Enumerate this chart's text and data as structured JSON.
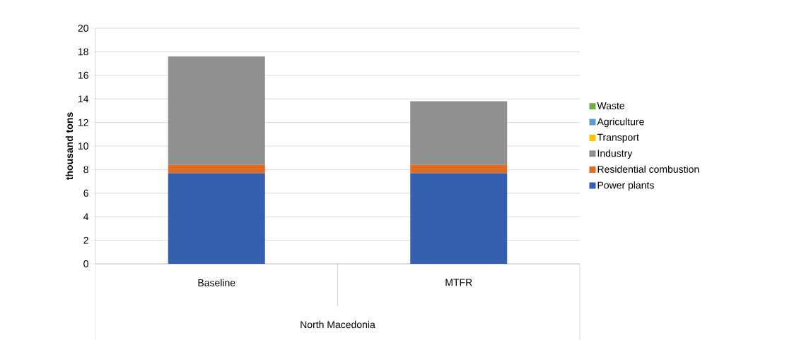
{
  "chart_data": {
    "type": "bar",
    "stacked": true,
    "categories": [
      "Baseline",
      "MTFR"
    ],
    "xlabel": "North Macedonia",
    "ylabel": "thousand tons",
    "ylim": [
      0,
      20
    ],
    "yticks": [
      0,
      2,
      4,
      6,
      8,
      10,
      12,
      14,
      16,
      18,
      20
    ],
    "grid": "y",
    "legend": "right",
    "series": [
      {
        "name": "Power plants",
        "color": "#3560b0",
        "values": [
          7.7,
          7.7
        ]
      },
      {
        "name": "Residential combustion",
        "color": "#e06c23",
        "values": [
          0.7,
          0.7
        ]
      },
      {
        "name": "Industry",
        "color": "#8f8f8f",
        "values": [
          9.2,
          5.4
        ]
      },
      {
        "name": "Transport",
        "color": "#ffc000",
        "values": [
          0,
          0
        ]
      },
      {
        "name": "Agriculture",
        "color": "#5b9bd5",
        "values": [
          0,
          0
        ]
      },
      {
        "name": "Waste",
        "color": "#70ad47",
        "values": [
          0,
          0
        ]
      }
    ]
  }
}
